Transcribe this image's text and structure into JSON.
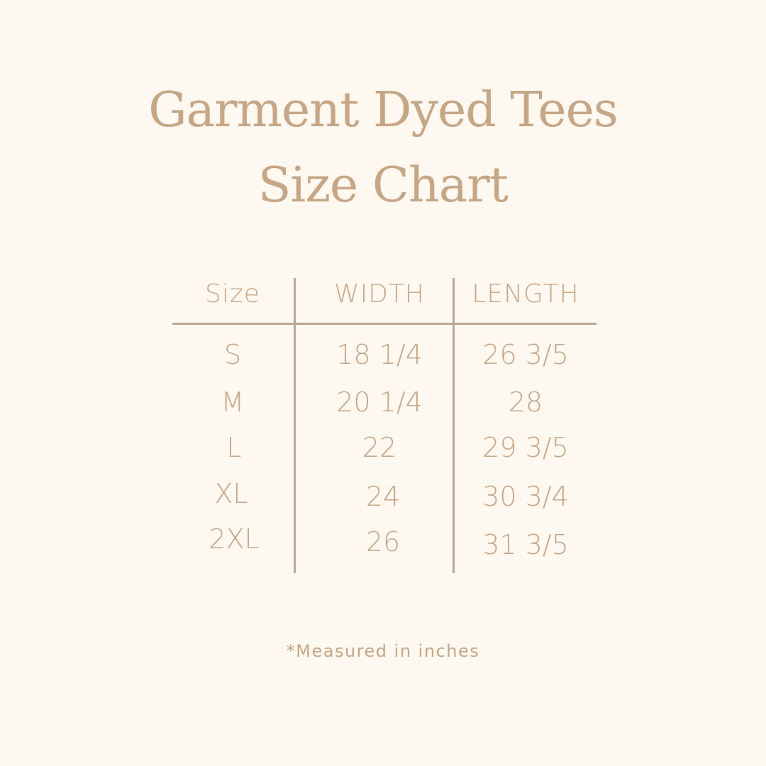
{
  "title": {
    "line1": "Garment Dyed Tees",
    "line2": "Size Chart"
  },
  "table": {
    "headers": [
      "Size",
      "WIDTH",
      "LENGTH"
    ],
    "rows": [
      [
        "S",
        "18 1/4",
        "26 3/5"
      ],
      [
        "M",
        "20 1/4",
        "28"
      ],
      [
        "L",
        "22",
        "29 3/5"
      ],
      [
        "XL",
        "24",
        "30 3/4"
      ],
      [
        "2XL",
        "26",
        "31 3/5"
      ]
    ]
  },
  "footnote": "*Measured in inches",
  "colors": {
    "background": "#fdf8f0",
    "text": "#c7a684",
    "lines": "#bca790"
  }
}
